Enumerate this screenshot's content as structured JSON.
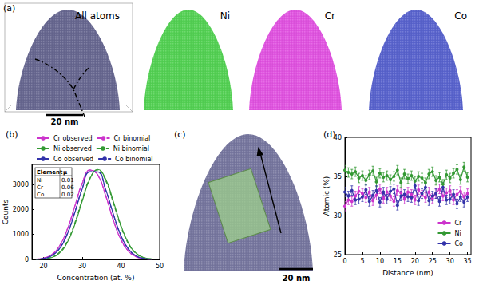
{
  "figure": {
    "panel_a": {
      "label": "(a)",
      "maps": [
        {
          "label": "All atoms",
          "color": "#5a5a86"
        },
        {
          "label": "Ni",
          "color": "#44cc44"
        },
        {
          "label": "Cr",
          "color": "#dd44dd"
        },
        {
          "label": "Co",
          "color": "#4a55c8"
        }
      ],
      "scale_bar": "20 nm"
    },
    "panel_c": {
      "label": "(c)",
      "color": "#6a6a96",
      "scale_bar": "20 nm"
    }
  },
  "chart_data": [
    {
      "type": "line",
      "title": "(b)",
      "xlabel": "Concentration (at. %)",
      "ylabel": "Counts",
      "x": [
        18,
        20,
        22,
        24,
        26,
        28,
        30,
        32,
        34,
        36,
        38,
        40,
        42,
        44,
        46,
        48
      ],
      "series": [
        {
          "name": "Cr observed",
          "color": "#cc33cc",
          "line_style": "solid",
          "values": [
            12,
            53,
            184,
            511,
            1148,
            2081,
            3042,
            3575,
            3388,
            2585,
            1588,
            788,
            313,
            101,
            26,
            5
          ]
        },
        {
          "name": "Cr binomial",
          "color": "#cc33cc",
          "line_style": "dashed",
          "values": [
            10,
            48,
            178,
            505,
            1150,
            2095,
            3060,
            3580,
            3370,
            2570,
            1580,
            790,
            320,
            105,
            28,
            6
          ]
        },
        {
          "name": "Ni observed",
          "color": "#339933",
          "line_style": "solid",
          "values": [
            4,
            18,
            72,
            241,
            637,
            1361,
            2336,
            3229,
            3600,
            3229,
            2336,
            1361,
            637,
            241,
            72,
            18
          ]
        },
        {
          "name": "Ni binomial",
          "color": "#339933",
          "line_style": "dashed",
          "values": [
            5,
            22,
            85,
            270,
            690,
            1430,
            2400,
            3260,
            3580,
            3170,
            2270,
            1310,
            610,
            225,
            66,
            16
          ]
        },
        {
          "name": "Co observed",
          "color": "#3333aa",
          "line_style": "solid",
          "values": [
            8,
            37,
            137,
            403,
            958,
            1832,
            2822,
            3503,
            3503,
            2822,
            1832,
            958,
            403,
            137,
            37,
            8
          ]
        },
        {
          "name": "Co binomial",
          "color": "#3333aa",
          "line_style": "dashed",
          "values": [
            9,
            40,
            145,
            420,
            985,
            1860,
            2840,
            3510,
            3490,
            2800,
            1810,
            940,
            395,
            133,
            35,
            8
          ]
        }
      ],
      "xlim": [
        17,
        50
      ],
      "xticks": [
        20,
        30,
        40,
        50
      ],
      "ylim": [
        0,
        3800
      ],
      "yticks": [
        0,
        1000,
        2000,
        3000
      ],
      "grid": false,
      "legend": "top",
      "inset_table": {
        "header": [
          "Element",
          "μ"
        ],
        "rows": [
          [
            "Ni",
            0.01
          ],
          [
            "Cr",
            0.06
          ],
          [
            "Co",
            0.02
          ]
        ]
      }
    },
    {
      "type": "line",
      "title": "(d)",
      "xlabel": "Distance (nm)",
      "ylabel": "Atomic (%)",
      "x": [
        0,
        1,
        2,
        3,
        4,
        5,
        6,
        7,
        8,
        9,
        10,
        11,
        12,
        13,
        14,
        15,
        16,
        17,
        18,
        19,
        20,
        21,
        22,
        23,
        24,
        25,
        26,
        27,
        28,
        29,
        30,
        31,
        32,
        33,
        34,
        35
      ],
      "series": [
        {
          "name": "Cr",
          "color": "#cc33cc",
          "marker": "circle",
          "line_style": "solid",
          "values": [
            31.2,
            32.0,
            31.8,
            32.5,
            33.1,
            32.8,
            32.3,
            33.0,
            31.9,
            32.6,
            33.4,
            32.2,
            33.0,
            32.5,
            31.8,
            33.2,
            32.9,
            32.1,
            33.0,
            32.7,
            32.0,
            33.3,
            32.6,
            32.3,
            33.0,
            32.2,
            32.8,
            33.4,
            32.5,
            32.9,
            33.2,
            32.0,
            32.7,
            33.1,
            32.4,
            32.8
          ],
          "errors": [
            0.6,
            0.6,
            0.6,
            0.6,
            0.6,
            0.6,
            0.6,
            0.6,
            0.6,
            0.6,
            0.6,
            0.6,
            0.6,
            0.6,
            0.6,
            0.6,
            0.6,
            0.6,
            0.6,
            0.6,
            0.6,
            0.6,
            0.6,
            0.6,
            0.6,
            0.6,
            0.6,
            0.6,
            0.6,
            0.6,
            0.6,
            0.6,
            0.6,
            0.6,
            0.6,
            0.6
          ]
        },
        {
          "name": "Ni",
          "color": "#339933",
          "marker": "circle",
          "line_style": "solid",
          "values": [
            35.8,
            35.5,
            35.3,
            35.6,
            34.8,
            35.1,
            34.5,
            35.2,
            35.7,
            34.3,
            35.4,
            34.9,
            35.1,
            34.6,
            35.0,
            35.8,
            34.2,
            35.3,
            34.7,
            35.1,
            34.4,
            35.0,
            34.8,
            34.2,
            35.3,
            35.6,
            34.5,
            34.9,
            34.0,
            35.2,
            34.8,
            35.4,
            35.9,
            34.6,
            36.2,
            34.9
          ],
          "errors": [
            0.6,
            0.6,
            0.6,
            0.6,
            0.6,
            0.6,
            0.6,
            0.6,
            0.6,
            0.6,
            0.6,
            0.6,
            0.6,
            0.6,
            0.6,
            0.6,
            0.6,
            0.6,
            0.6,
            0.6,
            0.6,
            0.6,
            0.6,
            0.6,
            0.6,
            0.6,
            0.6,
            0.6,
            0.6,
            0.6,
            0.6,
            0.6,
            0.6,
            0.6,
            0.6,
            0.6
          ]
        },
        {
          "name": "Co",
          "color": "#3333aa",
          "marker": "circle",
          "line_style": "solid",
          "values": [
            33.0,
            32.5,
            33.2,
            32.0,
            32.1,
            32.4,
            33.3,
            31.8,
            32.6,
            33.2,
            31.7,
            33.0,
            32.1,
            33.1,
            33.4,
            31.3,
            32.5,
            32.7,
            32.4,
            32.3,
            33.8,
            31.9,
            32.8,
            33.6,
            31.9,
            32.5,
            32.8,
            31.8,
            33.6,
            32.0,
            32.1,
            32.7,
            31.5,
            32.4,
            31.7,
            32.4
          ],
          "errors": [
            0.6,
            0.6,
            0.6,
            0.6,
            0.6,
            0.6,
            0.6,
            0.6,
            0.6,
            0.6,
            0.6,
            0.6,
            0.6,
            0.6,
            0.6,
            0.6,
            0.6,
            0.6,
            0.6,
            0.6,
            0.6,
            0.6,
            0.6,
            0.6,
            0.6,
            0.6,
            0.6,
            0.6,
            0.6,
            0.6,
            0.6,
            0.6,
            0.6,
            0.6,
            0.6,
            0.6
          ]
        }
      ],
      "xlim": [
        0,
        36
      ],
      "xticks": [
        0,
        5,
        10,
        15,
        20,
        25,
        30,
        35
      ],
      "ylim": [
        25,
        40
      ],
      "yticks": [
        25,
        30,
        35,
        40
      ],
      "grid": false,
      "legend": "lower right"
    }
  ]
}
